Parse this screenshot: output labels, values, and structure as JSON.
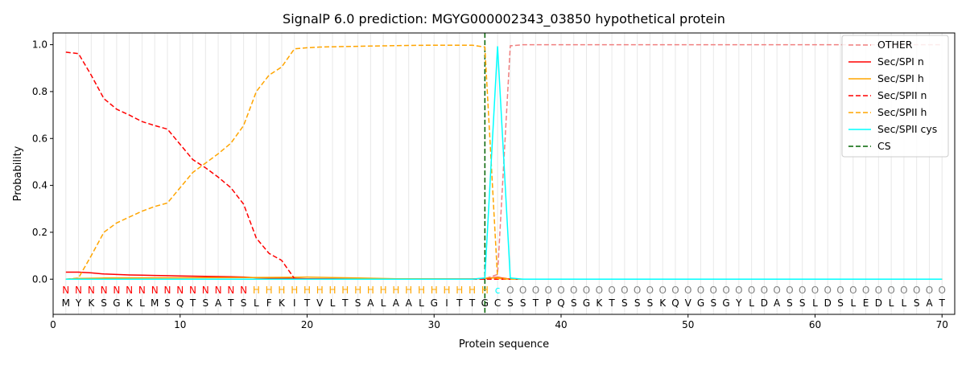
{
  "chart_data": {
    "type": "line",
    "title": "SignalP 6.0 prediction: MGYG000002343_03850 hypothetical protein",
    "xlabel": "Protein sequence",
    "ylabel": "Probability",
    "xlim": [
      0,
      71
    ],
    "ylim": [
      -0.15,
      1.05
    ],
    "x_ticks": [
      0,
      10,
      20,
      30,
      40,
      50,
      60,
      70
    ],
    "y_ticks": [
      0.0,
      0.2,
      0.4,
      0.6,
      0.8,
      1.0
    ],
    "grid": "vertical lines at each residue",
    "legend_position": "top-right",
    "sequence": [
      "M",
      "Y",
      "K",
      "S",
      "G",
      "K",
      "L",
      "M",
      "S",
      "Q",
      "T",
      "S",
      "A",
      "T",
      "S",
      "L",
      "F",
      "K",
      "I",
      "T",
      "V",
      "L",
      "T",
      "S",
      "A",
      "L",
      "A",
      "A",
      "L",
      "G",
      "I",
      "T",
      "T",
      "G",
      "C",
      "S",
      "S",
      "T",
      "P",
      "Q",
      "S",
      "G",
      "K",
      "T",
      "S",
      "S",
      "S",
      "K",
      "Q",
      "V",
      "G",
      "S",
      "G",
      "Y",
      "L",
      "D",
      "A",
      "S",
      "S",
      "L",
      "D",
      "S",
      "L",
      "E",
      "D",
      "L",
      "L",
      "S",
      "A",
      "T"
    ],
    "labels": [
      "N",
      "N",
      "N",
      "N",
      "N",
      "N",
      "N",
      "N",
      "N",
      "N",
      "N",
      "N",
      "N",
      "N",
      "N",
      "H",
      "H",
      "H",
      "H",
      "H",
      "H",
      "H",
      "H",
      "H",
      "H",
      "H",
      "H",
      "H",
      "H",
      "H",
      "H",
      "H",
      "H",
      "H",
      "c",
      "O",
      "O",
      "O",
      "O",
      "O",
      "O",
      "O",
      "O",
      "O",
      "O",
      "O",
      "O",
      "O",
      "O",
      "O",
      "O",
      "O",
      "O",
      "O",
      "O",
      "O",
      "O",
      "O",
      "O",
      "O",
      "O",
      "O",
      "O",
      "O",
      "O",
      "O",
      "O",
      "O",
      "O",
      "O"
    ],
    "label_colors": {
      "N": "#ff0000",
      "H": "#ffa500",
      "c": "#00ffff",
      "O": "#808080"
    },
    "cs_position": 34,
    "series": [
      {
        "name": "OTHER",
        "color": "#f08080",
        "dash": "dashed",
        "points": [
          [
            1,
            0
          ],
          [
            33,
            0
          ],
          [
            34,
            0.002
          ],
          [
            35,
            0.02
          ],
          [
            36,
            0.995
          ],
          [
            37,
            1.0
          ],
          [
            70,
            1.0
          ]
        ]
      },
      {
        "name": "Sec/SPI n",
        "color": "#ff0000",
        "dash": "solid",
        "points": [
          [
            1,
            0.03
          ],
          [
            2,
            0.03
          ],
          [
            3,
            0.027
          ],
          [
            4,
            0.022
          ],
          [
            5,
            0.02
          ],
          [
            6,
            0.018
          ],
          [
            7,
            0.017
          ],
          [
            8,
            0.016
          ],
          [
            9,
            0.015
          ],
          [
            10,
            0.014
          ],
          [
            11,
            0.013
          ],
          [
            12,
            0.012
          ],
          [
            13,
            0.011
          ],
          [
            14,
            0.01
          ],
          [
            15,
            0.009
          ],
          [
            16,
            0.006
          ],
          [
            17,
            0.005
          ],
          [
            18,
            0.004
          ],
          [
            19,
            0.003
          ],
          [
            20,
            0.002
          ],
          [
            25,
            0.001
          ],
          [
            33,
            0.001
          ],
          [
            34,
            0.003
          ],
          [
            35,
            0.008
          ],
          [
            36,
            0
          ],
          [
            70,
            0
          ]
        ]
      },
      {
        "name": "Sec/SPI h",
        "color": "#ffa500",
        "dash": "solid",
        "points": [
          [
            1,
            0
          ],
          [
            2,
            0.003
          ],
          [
            4,
            0.005
          ],
          [
            10,
            0.006
          ],
          [
            15,
            0.007
          ],
          [
            19,
            0.008
          ],
          [
            20,
            0.009
          ],
          [
            22,
            0.007
          ],
          [
            24,
            0.005
          ],
          [
            27,
            0.002
          ],
          [
            33,
            0.001
          ],
          [
            34,
            0.004
          ],
          [
            35,
            0.006
          ],
          [
            36,
            0
          ],
          [
            70,
            0
          ]
        ]
      },
      {
        "name": "Sec/SPII n",
        "color": "#ff0000",
        "dash": "dashed",
        "points": [
          [
            1,
            0.968
          ],
          [
            2,
            0.962
          ],
          [
            3,
            0.87
          ],
          [
            4,
            0.77
          ],
          [
            5,
            0.725
          ],
          [
            6,
            0.7
          ],
          [
            7,
            0.672
          ],
          [
            8,
            0.655
          ],
          [
            9,
            0.64
          ],
          [
            10,
            0.575
          ],
          [
            11,
            0.51
          ],
          [
            12,
            0.475
          ],
          [
            13,
            0.435
          ],
          [
            14,
            0.39
          ],
          [
            15,
            0.32
          ],
          [
            16,
            0.175
          ],
          [
            17,
            0.11
          ],
          [
            18,
            0.08
          ],
          [
            19,
            0.003
          ],
          [
            20,
            0
          ],
          [
            70,
            0
          ]
        ]
      },
      {
        "name": "Sec/SPII h",
        "color": "#ffa500",
        "dash": "dashed",
        "points": [
          [
            1,
            0
          ],
          [
            2,
            0.005
          ],
          [
            3,
            0.1
          ],
          [
            4,
            0.2
          ],
          [
            5,
            0.24
          ],
          [
            6,
            0.265
          ],
          [
            7,
            0.29
          ],
          [
            8,
            0.31
          ],
          [
            9,
            0.325
          ],
          [
            10,
            0.39
          ],
          [
            11,
            0.455
          ],
          [
            12,
            0.495
          ],
          [
            13,
            0.535
          ],
          [
            14,
            0.58
          ],
          [
            15,
            0.655
          ],
          [
            16,
            0.8
          ],
          [
            17,
            0.87
          ],
          [
            18,
            0.905
          ],
          [
            19,
            0.982
          ],
          [
            20,
            0.987
          ],
          [
            21,
            0.99
          ],
          [
            23,
            0.992
          ],
          [
            25,
            0.994
          ],
          [
            28,
            0.997
          ],
          [
            30,
            0.998
          ],
          [
            33,
            0.998
          ],
          [
            34,
            0.99
          ],
          [
            35,
            0.003
          ],
          [
            36,
            0
          ],
          [
            70,
            0
          ]
        ]
      },
      {
        "name": "Sec/SPII cys",
        "color": "#00ffff",
        "dash": "solid",
        "points": [
          [
            1,
            0
          ],
          [
            33,
            0
          ],
          [
            34,
            0.005
          ],
          [
            35,
            0.993
          ],
          [
            36,
            0.005
          ],
          [
            37,
            0
          ],
          [
            70,
            0
          ]
        ]
      },
      {
        "name": "CS",
        "color": "#006400",
        "dash": "dashed",
        "vline": 34
      }
    ]
  }
}
